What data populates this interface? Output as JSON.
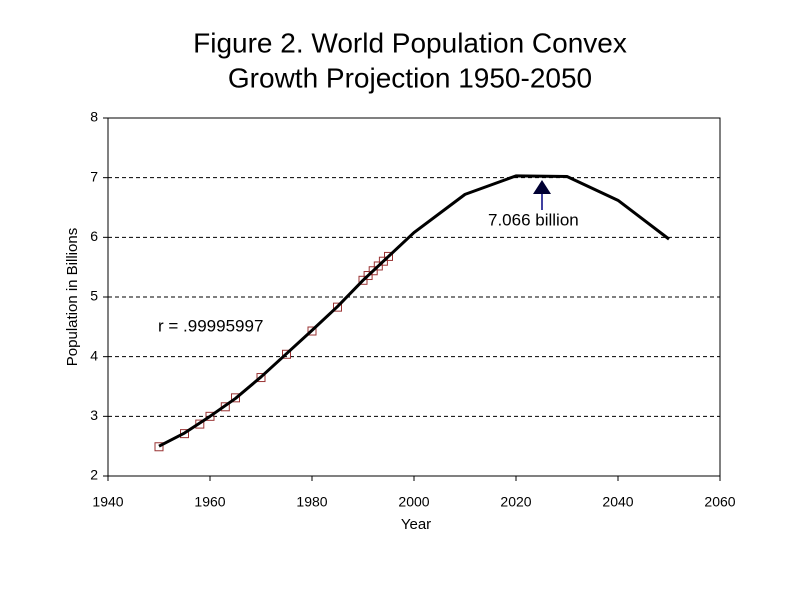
{
  "chart_data": {
    "type": "line",
    "title": [
      "Figure 2.  World Population Convex",
      "Growth Projection  1950-2050"
    ],
    "x_label": "Year",
    "y_label": "Population in Billions",
    "annotations": [
      "r = .99995997",
      "7.066 billion"
    ],
    "xlim": [
      1940,
      2060
    ],
    "xticks": [
      1940,
      1960,
      1980,
      2000,
      2020,
      2040,
      2060
    ],
    "ylim": [
      2,
      8
    ],
    "yticks": [
      2,
      3,
      4,
      5,
      6,
      7,
      8
    ],
    "grid": true,
    "series": [
      {
        "color": "#993333",
        "marker": "square",
        "line": false,
        "x": [
          1950,
          1955,
          1958,
          1960,
          1963,
          1965,
          1970,
          1975,
          1980,
          1985,
          1990,
          1991,
          1992,
          1993,
          1994,
          1995
        ],
        "values": [
          2.49,
          2.71,
          2.87,
          3.0,
          3.16,
          3.31,
          3.65,
          4.04,
          4.43,
          4.83,
          5.28,
          5.36,
          5.44,
          5.52,
          5.6,
          5.68
        ]
      },
      {
        "color": "#000000",
        "marker": "none",
        "line": true,
        "x": [
          1950,
          1955,
          1960,
          1965,
          1970,
          1975,
          1980,
          1985,
          1990,
          1995,
          2000,
          2010,
          2020,
          2030,
          2040,
          2050
        ],
        "values": [
          2.5,
          2.72,
          3.0,
          3.3,
          3.66,
          4.05,
          4.44,
          4.84,
          5.28,
          5.68,
          6.08,
          6.72,
          7.03,
          7.02,
          6.62,
          5.97
        ]
      }
    ]
  }
}
